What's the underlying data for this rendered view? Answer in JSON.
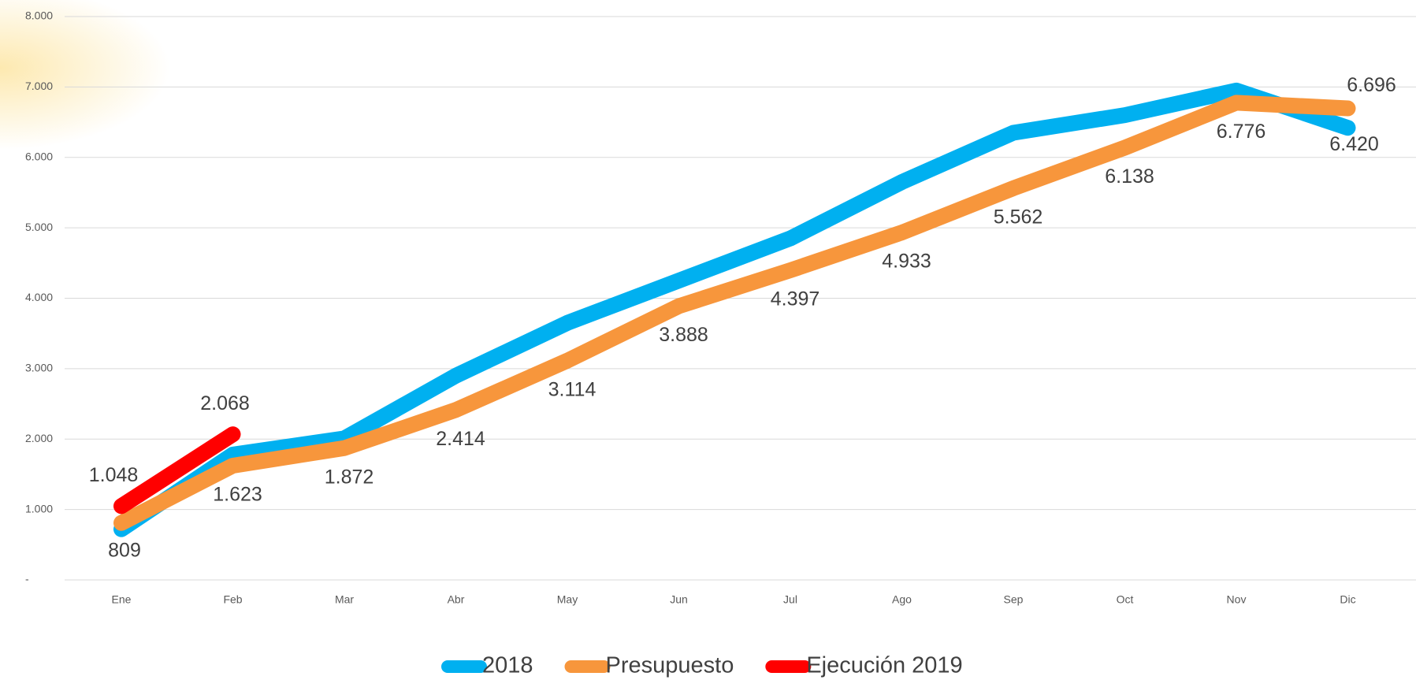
{
  "chart_data": {
    "type": "line",
    "categories": [
      "Ene",
      "Feb",
      "Mar",
      "Abr",
      "May",
      "Jun",
      "Jul",
      "Ago",
      "Sep",
      "Oct",
      "Nov",
      "Dic"
    ],
    "ylim": [
      0,
      8000
    ],
    "yticks": [
      {
        "value": 0,
        "label": "-"
      },
      {
        "value": 1000,
        "label": "1.000"
      },
      {
        "value": 2000,
        "label": "2.000"
      },
      {
        "value": 3000,
        "label": "3.000"
      },
      {
        "value": 4000,
        "label": "4.000"
      },
      {
        "value": 5000,
        "label": "5.000"
      },
      {
        "value": 6000,
        "label": "6.000"
      },
      {
        "value": 7000,
        "label": "7.000"
      },
      {
        "value": 8000,
        "label": "8.000"
      }
    ],
    "grid": true,
    "legend": "bottom",
    "series": [
      {
        "name": "2018",
        "color": "#00b0f0",
        "values": [
          720,
          1780,
          2010,
          2900,
          3650,
          4250,
          4850,
          5650,
          6350,
          6600,
          6950,
          6420
        ],
        "value_labels": [
          null,
          null,
          null,
          null,
          null,
          null,
          null,
          null,
          null,
          null,
          null,
          "6.420"
        ]
      },
      {
        "name": "Presupuesto",
        "color": "#f7963c",
        "values": [
          809,
          1623,
          1872,
          2414,
          3114,
          3888,
          4397,
          4933,
          5562,
          6138,
          6776,
          6696
        ],
        "value_labels": [
          "809",
          "1.623",
          "1.872",
          "2.414",
          "3.114",
          "3.888",
          "4.397",
          "4.933",
          "5.562",
          "6.138",
          "6.776",
          "6.696"
        ]
      },
      {
        "name": "Ejecución 2019",
        "color": "#ff0000",
        "values": [
          1048,
          2068,
          null,
          null,
          null,
          null,
          null,
          null,
          null,
          null,
          null,
          null
        ],
        "value_labels": [
          "1.048",
          "2.068",
          null,
          null,
          null,
          null,
          null,
          null,
          null,
          null,
          null,
          null
        ]
      }
    ]
  }
}
